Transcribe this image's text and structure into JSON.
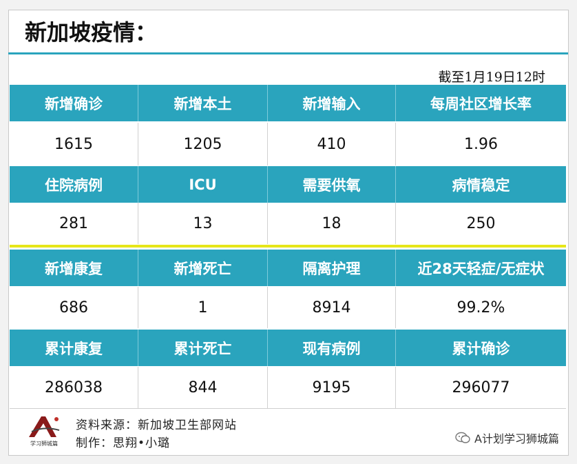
{
  "title": "新加坡疫情：",
  "as_of": "截至1月19日12时",
  "blocks": [
    {
      "headers": [
        "新增确诊",
        "新增本土",
        "新增输入",
        "每周社区增长率"
      ],
      "values": [
        "1615",
        "1205",
        "410",
        "1.96"
      ]
    },
    {
      "headers": [
        "住院病例",
        "ICU",
        "需要供氧",
        "病情稳定"
      ],
      "values": [
        "281",
        "13",
        "18",
        "250"
      ]
    },
    {
      "headers": [
        "新增康复",
        "新增死亡",
        "隔离护理",
        "近28天轻症/无症状"
      ],
      "values": [
        "686",
        "1",
        "8914",
        "99.2%"
      ]
    },
    {
      "headers": [
        "累计康复",
        "累计死亡",
        "现有病例",
        "累计确诊"
      ],
      "values": [
        "286038",
        "844",
        "9195",
        "296077"
      ]
    }
  ],
  "footer": {
    "source": "资料来源：新加坡卫生部网站",
    "author": "制作：思翔•小璐",
    "logo_caption": "学习狮城篇",
    "brand": "A计划学习狮城篇"
  },
  "colors": {
    "header_bg": "#2aa4bd",
    "divider": "#e6e619"
  }
}
